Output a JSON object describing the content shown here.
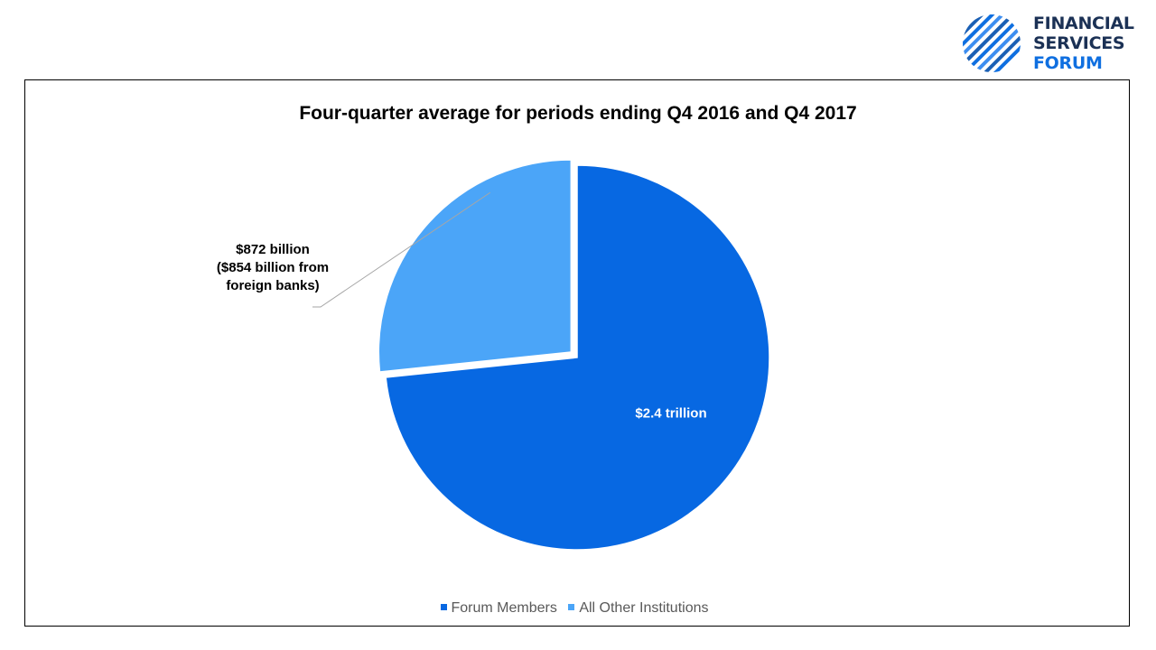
{
  "logo": {
    "lines": [
      "FINANCIAL",
      "SERVICES",
      "FORUM"
    ],
    "colors": [
      "#1b3155",
      "#1b3155",
      "#0f6fe0"
    ],
    "icon": "striped-globe-icon"
  },
  "chart_data": {
    "type": "pie",
    "title": "Four-quarter average for periods ending Q4 2016 and Q4 2017",
    "labels": [
      "Forum Members",
      "All Other Institutions"
    ],
    "values": [
      2400,
      872
    ],
    "unit": "billion USD",
    "colors": [
      "#0768e2",
      "#4ba5f8"
    ],
    "data_labels": [
      [
        "$2.4 trillion"
      ],
      [
        "$872 billion",
        "($854 billion from",
        "foreign banks)"
      ]
    ],
    "legend_position": "bottom",
    "exploded_slice": 1
  }
}
